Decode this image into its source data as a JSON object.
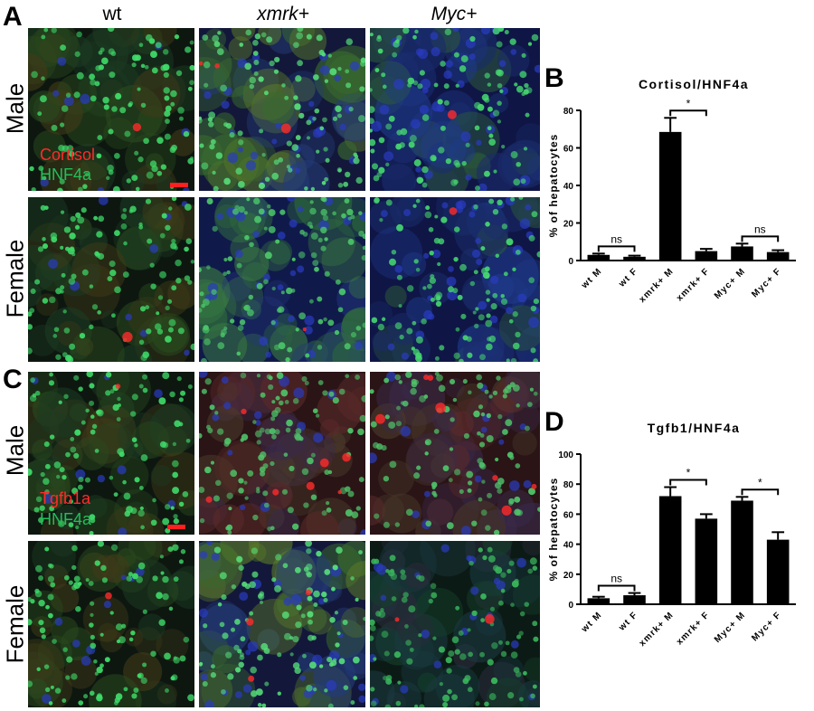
{
  "panels": {
    "A": "A",
    "B": "B",
    "C": "C",
    "D": "D"
  },
  "columns": {
    "wt": "wt",
    "xmrk": "xmrk+",
    "myc": "Myc+"
  },
  "rows": {
    "male": "Male",
    "female": "Female"
  },
  "stain_A": {
    "red": "Cortisol",
    "green": "HNF4a",
    "red_color": "#ff2a2a",
    "green_color": "#20c05a"
  },
  "stain_C": {
    "red": "Tgfb1a",
    "green": "HNF4a",
    "red_color": "#ff2a2a",
    "green_color": "#20c05a"
  },
  "chart_data": [
    {
      "type": "bar",
      "title": "Cortisol/HNF4a",
      "ylabel": "% of hepatocytes",
      "xlabel": "",
      "ylim": [
        0,
        80
      ],
      "yticks": [
        0,
        20,
        40,
        60,
        80
      ],
      "categories": [
        "wt M",
        "wt F",
        "xmrk+ M",
        "xmrk+ F",
        "Myc+ M",
        "Myc+ F"
      ],
      "values": [
        3,
        2,
        68.5,
        5,
        7.5,
        4.5
      ],
      "errors": [
        0.7,
        0.6,
        7.5,
        1.2,
        1.5,
        1.0
      ],
      "significance": [
        {
          "from": 0,
          "to": 1,
          "label": "ns"
        },
        {
          "from": 2,
          "to": 3,
          "label": "*"
        },
        {
          "from": 4,
          "to": 5,
          "label": "ns"
        }
      ]
    },
    {
      "type": "bar",
      "title": "Tgfb1/HNF4a",
      "ylabel": "% of hepatocytes",
      "xlabel": "",
      "ylim": [
        0,
        100
      ],
      "yticks": [
        0,
        20,
        40,
        60,
        80,
        100
      ],
      "categories": [
        "wt M",
        "wt F",
        "xmrk+ M",
        "xmrk+ F",
        "Myc+ M",
        "Myc+ F"
      ],
      "values": [
        4,
        6,
        72,
        57,
        69,
        43
      ],
      "errors": [
        1.0,
        1.5,
        6.0,
        3.0,
        2.5,
        5.0
      ],
      "significance": [
        {
          "from": 0,
          "to": 1,
          "label": "ns"
        },
        {
          "from": 2,
          "to": 3,
          "label": "*"
        },
        {
          "from": 4,
          "to": 5,
          "label": "*"
        }
      ]
    }
  ]
}
